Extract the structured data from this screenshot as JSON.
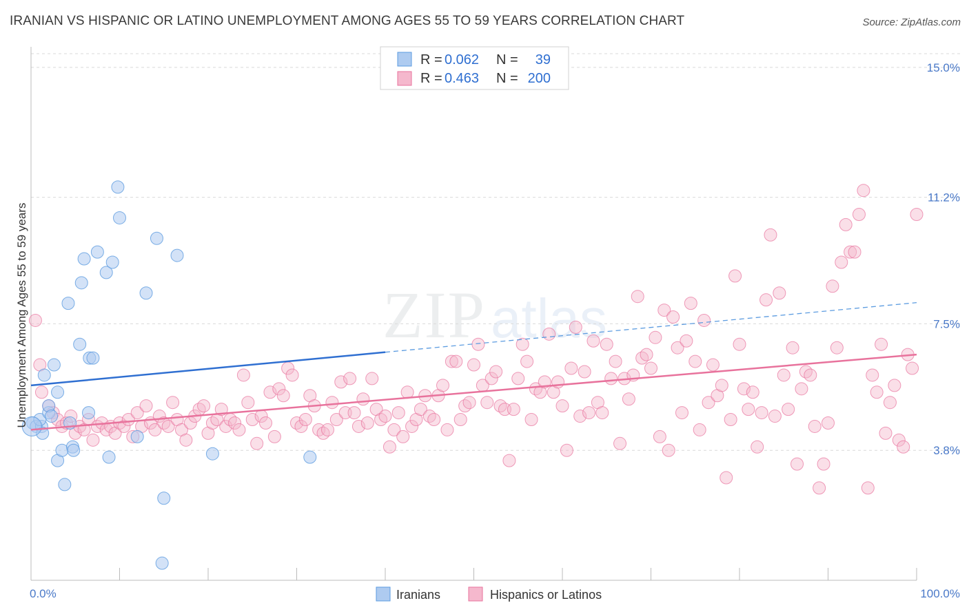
{
  "title": "IRANIAN VS HISPANIC OR LATINO UNEMPLOYMENT AMONG AGES 55 TO 59 YEARS CORRELATION CHART",
  "source": "Source: ZipAtlas.com",
  "colors": {
    "blue": "#5b9be0",
    "blue_fill": "#aecbf0",
    "pink": "#e8729c",
    "pink_fill": "#f5b8cd",
    "axis_text": "#4a79c8",
    "grid": "#d9d9d9"
  },
  "legend": {
    "rows": [
      {
        "r_label": "R =",
        "r_value": "0.062",
        "n_label": "N =",
        "n_value": "39"
      },
      {
        "r_label": "R =",
        "r_value": "0.463",
        "n_label": "N =",
        "n_value": "200"
      }
    ]
  },
  "bottom_legend": [
    "Iranians",
    "Hispanics or Latinos"
  ],
  "chart_data": {
    "type": "scatter",
    "title": "IRANIAN VS HISPANIC OR LATINO UNEMPLOYMENT AMONG AGES 55 TO 59 YEARS CORRELATION CHART",
    "xlabel": "",
    "ylabel": "Unemployment Among Ages 55 to 59 years",
    "x_tick_labels": [
      "0.0%",
      "100.0%"
    ],
    "y_tick_labels": [
      "3.8%",
      "7.5%",
      "11.2%",
      "15.0%"
    ],
    "y_ticks": [
      3.8,
      7.5,
      11.2,
      15.0
    ],
    "xlim": [
      0,
      100
    ],
    "ylim": [
      0,
      15.4
    ],
    "grid": "horizontal dashed",
    "legend_position": "top-center",
    "series": [
      {
        "name": "Iranians",
        "r": 0.062,
        "n": 39,
        "trend_solid": [
          [
            0,
            5.7
          ],
          [
            40,
            6.67
          ]
        ],
        "trend_dashed": [
          [
            40,
            6.67
          ],
          [
            100,
            8.12
          ]
        ],
        "points": [
          [
            0.2,
            4.6
          ],
          [
            0.6,
            4.5
          ],
          [
            1.2,
            4.5
          ],
          [
            1.0,
            4.7
          ],
          [
            1.3,
            4.3
          ],
          [
            1.5,
            6.0
          ],
          [
            2.0,
            4.9
          ],
          [
            2.0,
            5.1
          ],
          [
            2.3,
            4.8
          ],
          [
            2.6,
            6.3
          ],
          [
            3.0,
            5.5
          ],
          [
            3.0,
            3.5
          ],
          [
            3.5,
            3.8
          ],
          [
            3.8,
            2.8
          ],
          [
            4.2,
            8.1
          ],
          [
            4.4,
            4.6
          ],
          [
            4.7,
            3.9
          ],
          [
            4.8,
            3.8
          ],
          [
            5.5,
            6.9
          ],
          [
            5.7,
            8.7
          ],
          [
            6.0,
            9.4
          ],
          [
            6.5,
            4.9
          ],
          [
            6.6,
            6.5
          ],
          [
            7.0,
            6.5
          ],
          [
            7.5,
            9.6
          ],
          [
            8.5,
            9.0
          ],
          [
            8.8,
            3.6
          ],
          [
            9.2,
            9.3
          ],
          [
            9.8,
            11.5
          ],
          [
            10.0,
            10.6
          ],
          [
            12.0,
            4.2
          ],
          [
            13.0,
            8.4
          ],
          [
            14.2,
            10.0
          ],
          [
            14.8,
            0.5
          ],
          [
            15.0,
            2.4
          ],
          [
            16.5,
            9.5
          ],
          [
            20.5,
            3.7
          ],
          [
            31.5,
            3.6
          ],
          [
            0.1,
            4.5
          ]
        ]
      },
      {
        "name": "Hispanics or Latinos",
        "r": 0.463,
        "n": 200,
        "trend_solid": [
          [
            0,
            4.4
          ],
          [
            100,
            6.6
          ]
        ],
        "points": [
          [
            0.5,
            7.6
          ],
          [
            1.0,
            6.3
          ],
          [
            1.2,
            5.5
          ],
          [
            2.0,
            5.1
          ],
          [
            2.5,
            4.9
          ],
          [
            3.0,
            4.7
          ],
          [
            3.5,
            4.5
          ],
          [
            4.0,
            4.6
          ],
          [
            4.5,
            4.8
          ],
          [
            5.0,
            4.3
          ],
          [
            5.5,
            4.5
          ],
          [
            6.0,
            4.4
          ],
          [
            6.5,
            4.7
          ],
          [
            7.0,
            4.1
          ],
          [
            7.5,
            4.5
          ],
          [
            8.0,
            4.6
          ],
          [
            8.5,
            4.4
          ],
          [
            9.0,
            4.5
          ],
          [
            9.5,
            4.3
          ],
          [
            10.0,
            4.6
          ],
          [
            10.5,
            4.5
          ],
          [
            11.0,
            4.7
          ],
          [
            11.5,
            4.2
          ],
          [
            12.0,
            4.9
          ],
          [
            12.5,
            4.5
          ],
          [
            13.0,
            5.1
          ],
          [
            13.5,
            4.6
          ],
          [
            14.0,
            4.4
          ],
          [
            14.5,
            4.8
          ],
          [
            15.0,
            4.6
          ],
          [
            15.5,
            4.5
          ],
          [
            16.0,
            5.2
          ],
          [
            16.5,
            4.7
          ],
          [
            17.0,
            4.4
          ],
          [
            17.5,
            4.1
          ],
          [
            18.0,
            4.6
          ],
          [
            18.5,
            4.8
          ],
          [
            19.0,
            5.0
          ],
          [
            19.5,
            5.1
          ],
          [
            20.0,
            4.3
          ],
          [
            20.5,
            4.6
          ],
          [
            21.0,
            4.7
          ],
          [
            21.5,
            5.0
          ],
          [
            22.0,
            4.5
          ],
          [
            22.5,
            4.7
          ],
          [
            23.0,
            4.6
          ],
          [
            23.5,
            4.4
          ],
          [
            24.0,
            6.0
          ],
          [
            24.5,
            5.2
          ],
          [
            25.0,
            4.7
          ],
          [
            25.5,
            4.0
          ],
          [
            26.0,
            4.8
          ],
          [
            26.5,
            4.6
          ],
          [
            27.0,
            5.5
          ],
          [
            27.5,
            4.2
          ],
          [
            28.0,
            5.6
          ],
          [
            28.5,
            5.4
          ],
          [
            29.0,
            6.2
          ],
          [
            29.5,
            6.0
          ],
          [
            30.0,
            4.6
          ],
          [
            30.5,
            4.5
          ],
          [
            31.0,
            4.7
          ],
          [
            31.5,
            5.4
          ],
          [
            32.0,
            5.1
          ],
          [
            32.5,
            4.4
          ],
          [
            33.0,
            4.3
          ],
          [
            33.5,
            4.4
          ],
          [
            34.0,
            5.2
          ],
          [
            34.5,
            4.7
          ],
          [
            35.0,
            5.8
          ],
          [
            35.5,
            4.9
          ],
          [
            36.0,
            5.9
          ],
          [
            36.5,
            4.9
          ],
          [
            37.0,
            4.5
          ],
          [
            37.5,
            5.3
          ],
          [
            38.0,
            4.6
          ],
          [
            38.5,
            5.9
          ],
          [
            39.0,
            5.0
          ],
          [
            39.5,
            4.7
          ],
          [
            40.0,
            4.8
          ],
          [
            40.5,
            3.9
          ],
          [
            41.0,
            4.4
          ],
          [
            41.5,
            4.9
          ],
          [
            42.0,
            4.2
          ],
          [
            42.5,
            5.5
          ],
          [
            43.0,
            4.5
          ],
          [
            43.5,
            4.7
          ],
          [
            44.0,
            5.0
          ],
          [
            44.5,
            5.4
          ],
          [
            45.0,
            4.8
          ],
          [
            45.5,
            4.7
          ],
          [
            46.0,
            5.4
          ],
          [
            46.5,
            5.7
          ],
          [
            47.0,
            4.4
          ],
          [
            47.5,
            6.4
          ],
          [
            48.0,
            6.4
          ],
          [
            48.5,
            4.7
          ],
          [
            49.0,
            5.1
          ],
          [
            49.5,
            5.2
          ],
          [
            50.0,
            6.3
          ],
          [
            50.5,
            6.9
          ],
          [
            51.0,
            5.7
          ],
          [
            51.5,
            5.2
          ],
          [
            52.0,
            5.9
          ],
          [
            52.5,
            6.1
          ],
          [
            53.0,
            5.1
          ],
          [
            53.5,
            5.0
          ],
          [
            54.0,
            3.5
          ],
          [
            54.5,
            5.0
          ],
          [
            55.0,
            5.9
          ],
          [
            55.5,
            6.9
          ],
          [
            56.0,
            6.4
          ],
          [
            56.5,
            4.7
          ],
          [
            57.0,
            5.6
          ],
          [
            57.5,
            5.5
          ],
          [
            58.0,
            5.8
          ],
          [
            58.5,
            7.2
          ],
          [
            59.0,
            5.5
          ],
          [
            59.5,
            5.8
          ],
          [
            60.0,
            5.1
          ],
          [
            60.5,
            3.8
          ],
          [
            61.0,
            6.2
          ],
          [
            61.5,
            7.4
          ],
          [
            62.0,
            4.8
          ],
          [
            62.5,
            6.1
          ],
          [
            63.0,
            4.9
          ],
          [
            63.5,
            7.0
          ],
          [
            64.0,
            5.2
          ],
          [
            64.5,
            4.9
          ],
          [
            65.0,
            6.9
          ],
          [
            65.5,
            5.9
          ],
          [
            66.0,
            6.4
          ],
          [
            66.5,
            4.0
          ],
          [
            67.0,
            5.9
          ],
          [
            67.5,
            5.3
          ],
          [
            68.0,
            6.0
          ],
          [
            68.5,
            8.3
          ],
          [
            69.0,
            6.5
          ],
          [
            69.5,
            6.6
          ],
          [
            70.0,
            6.2
          ],
          [
            70.5,
            7.1
          ],
          [
            71.0,
            4.2
          ],
          [
            71.5,
            7.9
          ],
          [
            72.0,
            3.8
          ],
          [
            72.5,
            7.7
          ],
          [
            73.0,
            6.8
          ],
          [
            73.5,
            4.9
          ],
          [
            74.0,
            7.0
          ],
          [
            74.5,
            8.1
          ],
          [
            75.0,
            6.4
          ],
          [
            75.5,
            4.4
          ],
          [
            76.0,
            7.6
          ],
          [
            76.5,
            5.2
          ],
          [
            77.0,
            6.3
          ],
          [
            77.5,
            5.4
          ],
          [
            78.0,
            5.7
          ],
          [
            78.5,
            3.0
          ],
          [
            79.0,
            4.7
          ],
          [
            79.5,
            8.9
          ],
          [
            80.0,
            6.9
          ],
          [
            80.5,
            5.6
          ],
          [
            81.0,
            5.0
          ],
          [
            81.5,
            5.5
          ],
          [
            82.0,
            3.9
          ],
          [
            82.5,
            4.9
          ],
          [
            83.0,
            8.2
          ],
          [
            83.5,
            10.1
          ],
          [
            84.0,
            4.8
          ],
          [
            84.5,
            8.4
          ],
          [
            85.0,
            6.0
          ],
          [
            85.5,
            5.0
          ],
          [
            86.0,
            6.8
          ],
          [
            86.5,
            3.4
          ],
          [
            87.0,
            5.6
          ],
          [
            87.5,
            6.1
          ],
          [
            88.0,
            6.0
          ],
          [
            88.5,
            4.5
          ],
          [
            89.0,
            2.7
          ],
          [
            89.5,
            3.4
          ],
          [
            90.0,
            4.6
          ],
          [
            90.5,
            8.6
          ],
          [
            91.0,
            6.8
          ],
          [
            91.5,
            9.3
          ],
          [
            92.0,
            10.4
          ],
          [
            92.5,
            9.6
          ],
          [
            93.0,
            9.6
          ],
          [
            93.5,
            10.7
          ],
          [
            94.0,
            11.4
          ],
          [
            94.5,
            2.7
          ],
          [
            95.0,
            6.0
          ],
          [
            95.5,
            5.5
          ],
          [
            96.0,
            6.9
          ],
          [
            96.5,
            4.3
          ],
          [
            97.0,
            5.2
          ],
          [
            97.5,
            5.7
          ],
          [
            98.0,
            4.1
          ],
          [
            98.5,
            3.9
          ],
          [
            99.0,
            6.6
          ],
          [
            99.5,
            6.2
          ],
          [
            100.0,
            10.7
          ]
        ]
      }
    ]
  }
}
